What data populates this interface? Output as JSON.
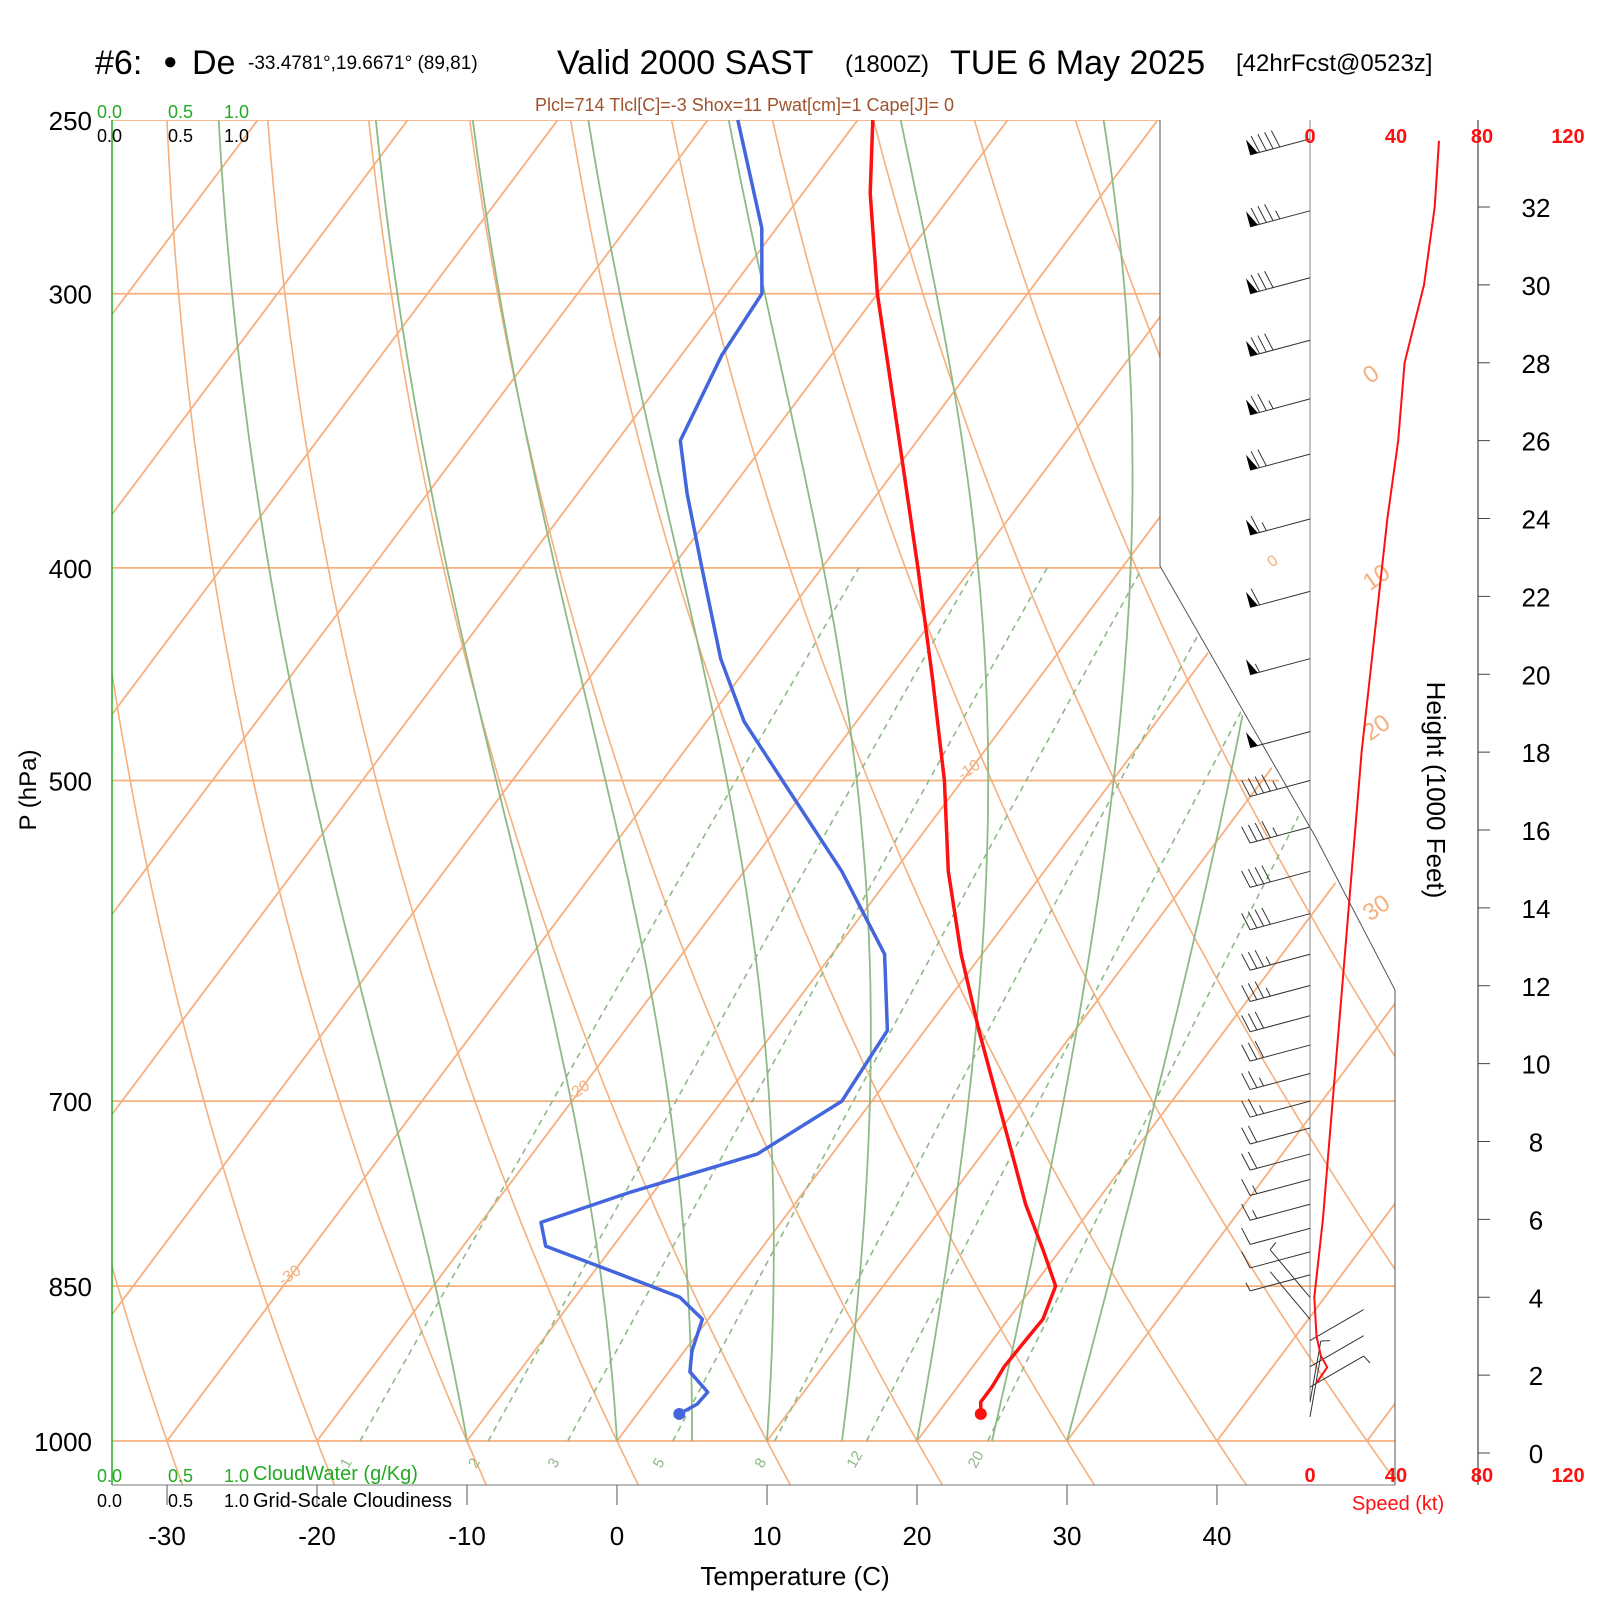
{
  "header": {
    "station": "#6:",
    "dot": "●",
    "station_name": "De",
    "coords": "-33.4781°,19.6671° (89,81)",
    "valid": "Valid 2000 SAST",
    "utc": "(1800Z)",
    "date": "TUE 6 May 2025",
    "fcst": "[42hrFcst@0523z]",
    "indices": "Plcl=714 Tlcl[C]=-3 Shox=11 Pwat[cm]=1 Cape[J]= 0"
  },
  "colors": {
    "isotherm": "#f5b07e",
    "dry_adiabat": "#8dba86",
    "mixing_ratio": "#8dba86",
    "temperature": "#ff1010",
    "dewpoint": "#4466dd",
    "speed": "#ff1010",
    "brown_text": "#a0522d",
    "green_text": "#22aa22"
  },
  "chart_data": {
    "type": "skew-t sounding",
    "xlabel": "Temperature (C)",
    "ylabel": "P (hPa)",
    "right_ylabel": "Height (1000 Feet)",
    "x_ticks": [
      -30,
      -20,
      -10,
      0,
      10,
      20,
      30,
      40
    ],
    "pressure_ticks": [
      250,
      300,
      400,
      500,
      700,
      850,
      1000
    ],
    "height_ticks_kft": [
      0,
      2,
      4,
      6,
      8,
      10,
      12,
      14,
      16,
      18,
      20,
      22,
      24,
      26,
      28,
      30,
      32
    ],
    "isotherm_labels": [
      {
        "text": "10",
        "t": 10,
        "p": 300
      },
      {
        "text": "0",
        "t": 0,
        "p": 400
      },
      {
        "text": "-10",
        "t": -10,
        "p": 500
      },
      {
        "text": "-20",
        "t": -20,
        "p": 700
      },
      {
        "text": "-30",
        "t": -30,
        "p": 850
      },
      {
        "text": "0",
        "t": 0,
        "p": 330
      },
      {
        "text": "10",
        "t": 10,
        "p": 410
      },
      {
        "text": "20",
        "t": 20,
        "p": 480
      },
      {
        "text": "30",
        "t": 30,
        "p": 580
      }
    ],
    "mixing_ratio_labels": [
      "1",
      "2",
      "3",
      "5",
      "8",
      "12",
      "20"
    ],
    "mixing_ratio_gkg": [
      1,
      2,
      3,
      5,
      8,
      12,
      20
    ],
    "dry_adiabats_theta_c": [
      -30,
      -20,
      -10,
      0,
      10,
      20,
      30,
      40,
      50,
      60,
      70,
      80,
      90,
      100,
      110,
      120,
      130,
      140
    ],
    "moist_adiabats_c": [
      -10,
      0,
      5,
      10,
      15,
      20,
      25,
      30
    ],
    "temperature": [
      {
        "p": 972,
        "t": 22.9
      },
      {
        "p": 960,
        "t": 22.3
      },
      {
        "p": 945,
        "t": 22.3
      },
      {
        "p": 925,
        "t": 22.1
      },
      {
        "p": 900,
        "t": 22.2
      },
      {
        "p": 880,
        "t": 22.3
      },
      {
        "p": 850,
        "t": 21.5
      },
      {
        "p": 820,
        "t": 19.0
      },
      {
        "p": 780,
        "t": 15.4
      },
      {
        "p": 740,
        "t": 12.0
      },
      {
        "p": 700,
        "t": 8.4
      },
      {
        "p": 650,
        "t": 3.6
      },
      {
        "p": 600,
        "t": -1.4
      },
      {
        "p": 550,
        "t": -6.4
      },
      {
        "p": 500,
        "t": -11.2
      },
      {
        "p": 450,
        "t": -17.0
      },
      {
        "p": 400,
        "t": -23.6
      },
      {
        "p": 350,
        "t": -31.2
      },
      {
        "p": 300,
        "t": -40.0
      },
      {
        "p": 270,
        "t": -45.5
      },
      {
        "p": 250,
        "t": -49.0
      }
    ],
    "dewpoint": [
      {
        "p": 972,
        "t": 2.8
      },
      {
        "p": 962,
        "t": 3.5
      },
      {
        "p": 950,
        "t": 3.6
      },
      {
        "p": 930,
        "t": 1.4
      },
      {
        "p": 910,
        "t": 0.5
      },
      {
        "p": 880,
        "t": -0.4
      },
      {
        "p": 860,
        "t": -3.0
      },
      {
        "p": 840,
        "t": -8.0
      },
      {
        "p": 815,
        "t": -14.5
      },
      {
        "p": 795,
        "t": -16.0
      },
      {
        "p": 770,
        "t": -11.5
      },
      {
        "p": 740,
        "t": -5.0
      },
      {
        "p": 700,
        "t": -2.0
      },
      {
        "p": 650,
        "t": -2.5
      },
      {
        "p": 600,
        "t": -6.5
      },
      {
        "p": 550,
        "t": -13.5
      },
      {
        "p": 500,
        "t": -22.0
      },
      {
        "p": 470,
        "t": -27.5
      },
      {
        "p": 440,
        "t": -32.2
      },
      {
        "p": 400,
        "t": -38.0
      },
      {
        "p": 370,
        "t": -42.7
      },
      {
        "p": 350,
        "t": -45.8
      },
      {
        "p": 320,
        "t": -47.3
      },
      {
        "p": 300,
        "t": -47.7
      },
      {
        "p": 280,
        "t": -51.0
      },
      {
        "p": 250,
        "t": -58.0
      }
    ],
    "surface_pressure": 972,
    "wind_speed_kt": [
      {
        "h": 1.8,
        "s": 3
      },
      {
        "h": 2.2,
        "s": 8
      },
      {
        "h": 2.5,
        "s": 5
      },
      {
        "h": 3.0,
        "s": 3
      },
      {
        "h": 4.0,
        "s": 2
      },
      {
        "h": 5.0,
        "s": 4
      },
      {
        "h": 6.0,
        "s": 6
      },
      {
        "h": 8.0,
        "s": 9
      },
      {
        "h": 10.0,
        "s": 12
      },
      {
        "h": 12.0,
        "s": 15
      },
      {
        "h": 14.0,
        "s": 18
      },
      {
        "h": 16.0,
        "s": 21
      },
      {
        "h": 18.0,
        "s": 24
      },
      {
        "h": 20.0,
        "s": 28
      },
      {
        "h": 22.0,
        "s": 32
      },
      {
        "h": 24.0,
        "s": 36
      },
      {
        "h": 26.0,
        "s": 41
      },
      {
        "h": 28.0,
        "s": 44
      },
      {
        "h": 30.0,
        "s": 53
      },
      {
        "h": 32.0,
        "s": 58
      },
      {
        "h": 33.7,
        "s": 60
      }
    ],
    "wind_barbs": [
      {
        "p": 975,
        "dir": "S",
        "kt": 3
      },
      {
        "p": 960,
        "dir": "S",
        "kt": 5
      },
      {
        "p": 945,
        "dir": "SE",
        "kt": 5
      },
      {
        "p": 925,
        "dir": "SE",
        "kt": 3
      },
      {
        "p": 900,
        "dir": "SE",
        "kt": 2
      },
      {
        "p": 880,
        "dir": "SW",
        "kt": 3
      },
      {
        "p": 860,
        "dir": "SW",
        "kt": 5
      },
      {
        "p": 840,
        "dir": "W",
        "kt": 8
      },
      {
        "p": 820,
        "dir": "W",
        "kt": 10
      },
      {
        "p": 800,
        "dir": "W",
        "kt": 12
      },
      {
        "p": 780,
        "dir": "W",
        "kt": 15
      },
      {
        "p": 760,
        "dir": "W",
        "kt": 18
      },
      {
        "p": 740,
        "dir": "W",
        "kt": 20
      },
      {
        "p": 720,
        "dir": "W",
        "kt": 20
      },
      {
        "p": 700,
        "dir": "W",
        "kt": 25
      },
      {
        "p": 680,
        "dir": "W",
        "kt": 25
      },
      {
        "p": 660,
        "dir": "W",
        "kt": 30
      },
      {
        "p": 640,
        "dir": "W",
        "kt": 30
      },
      {
        "p": 620,
        "dir": "W",
        "kt": 35
      },
      {
        "p": 600,
        "dir": "W",
        "kt": 35
      },
      {
        "p": 575,
        "dir": "W",
        "kt": 40
      },
      {
        "p": 550,
        "dir": "W",
        "kt": 40
      },
      {
        "p": 525,
        "dir": "W",
        "kt": 45
      },
      {
        "p": 500,
        "dir": "W",
        "kt": 45
      },
      {
        "p": 475,
        "dir": "W",
        "kt": 50
      },
      {
        "p": 440,
        "dir": "W",
        "kt": 55
      },
      {
        "p": 410,
        "dir": "W",
        "kt": 60
      },
      {
        "p": 380,
        "dir": "W",
        "kt": 65
      },
      {
        "p": 355,
        "dir": "W",
        "kt": 70
      },
      {
        "p": 335,
        "dir": "W",
        "kt": 75
      },
      {
        "p": 315,
        "dir": "W",
        "kt": 80
      },
      {
        "p": 295,
        "dir": "W",
        "kt": 80
      },
      {
        "p": 275,
        "dir": "W",
        "kt": 85
      },
      {
        "p": 255,
        "dir": "W",
        "kt": 90
      }
    ],
    "speed_axis_ticks": [
      "0",
      "40",
      "80",
      "120"
    ],
    "speed_label": "Speed (kt)",
    "cloud_scale_ticks": [
      "0.0",
      "0.5",
      "1.0"
    ],
    "cloud_water_label": "CloudWater (g/Kg)",
    "cloudiness_label": "Grid-Scale Cloudiness"
  }
}
